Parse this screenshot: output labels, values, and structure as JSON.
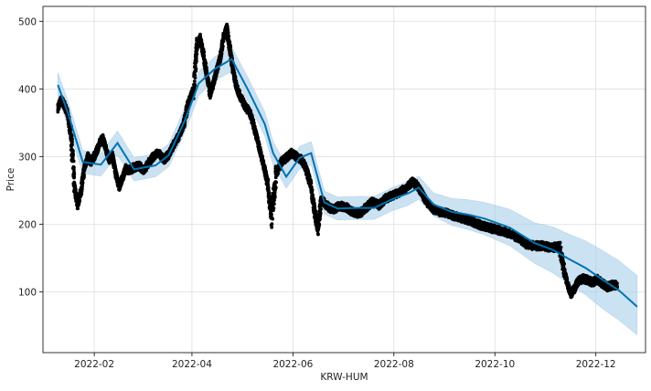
{
  "chart_data": {
    "type": "line",
    "title": "",
    "xlabel": "KRW-HUM",
    "ylabel": "Price",
    "xlim": [
      "2022-01-01",
      "2022-12-31"
    ],
    "ylim": [
      10,
      522
    ],
    "grid": true,
    "x_tick_labels": [
      "2022-02",
      "2022-04",
      "2022-06",
      "2022-08",
      "2022-10",
      "2022-12"
    ],
    "x_tick_dates": [
      "2022-02-01",
      "2022-04-01",
      "2022-06-01",
      "2022-08-01",
      "2022-10-01",
      "2022-12-01"
    ],
    "y_ticks": [
      100,
      200,
      300,
      400,
      500
    ],
    "colors": {
      "forecast": "#0072B2",
      "band": "#a9cfe9",
      "observed": "#000000",
      "grid": "#dddddd"
    },
    "series": [
      {
        "kind": "forecast",
        "x": [
          "2022-01-10",
          "2022-01-16",
          "2022-01-25",
          "2022-02-05",
          "2022-02-15",
          "2022-02-25",
          "2022-03-10",
          "2022-03-18",
          "2022-03-28",
          "2022-04-05",
          "2022-04-15",
          "2022-04-25",
          "2022-05-05",
          "2022-05-15",
          "2022-05-20",
          "2022-05-28",
          "2022-06-05",
          "2022-06-12",
          "2022-06-20",
          "2022-06-28",
          "2022-07-10",
          "2022-07-20",
          "2022-07-31",
          "2022-08-10",
          "2022-08-16",
          "2022-08-25",
          "2022-09-05",
          "2022-09-15",
          "2022-09-25",
          "2022-10-10",
          "2022-10-25",
          "2022-11-05",
          "2022-11-15",
          "2022-11-25",
          "2022-12-05",
          "2022-12-15",
          "2022-12-26"
        ],
        "y": [
          406,
          365,
          292,
          288,
          320,
          281,
          287,
          302,
          355,
          408,
          430,
          444,
          398,
          348,
          305,
          270,
          298,
          305,
          232,
          223,
          224,
          224,
          237,
          246,
          254,
          229,
          218,
          214,
          208,
          195,
          172,
          162,
          148,
          135,
          118,
          102,
          78
        ],
        "lower": [
          388,
          346,
          275,
          271,
          302,
          264,
          270,
          285,
          337,
          390,
          412,
          426,
          380,
          330,
          288,
          253,
          281,
          288,
          215,
          206,
          207,
          207,
          220,
          228,
          237,
          212,
          198,
          192,
          184,
          168,
          142,
          128,
          111,
          95,
          75,
          58,
          36
        ],
        "upper": [
          424,
          383,
          309,
          305,
          338,
          298,
          304,
          319,
          373,
          426,
          448,
          462,
          416,
          366,
          322,
          287,
          315,
          322,
          249,
          240,
          241,
          241,
          254,
          264,
          271,
          246,
          238,
          236,
          232,
          222,
          202,
          196,
          185,
          175,
          161,
          146,
          124
        ]
      },
      {
        "kind": "observed",
        "x": [
          "2022-01-10",
          "2022-01-12",
          "2022-01-14",
          "2022-01-16",
          "2022-01-18",
          "2022-01-20",
          "2022-01-22",
          "2022-01-24",
          "2022-01-26",
          "2022-01-28",
          "2022-01-30",
          "2022-02-02",
          "2022-02-04",
          "2022-02-06",
          "2022-02-08",
          "2022-02-10",
          "2022-02-12",
          "2022-02-14",
          "2022-02-16",
          "2022-02-18",
          "2022-02-20",
          "2022-02-22",
          "2022-02-25",
          "2022-02-28",
          "2022-03-03",
          "2022-03-06",
          "2022-03-09",
          "2022-03-12",
          "2022-03-15",
          "2022-03-18",
          "2022-03-21",
          "2022-03-24",
          "2022-03-27",
          "2022-03-30",
          "2022-04-02",
          "2022-04-04",
          "2022-04-06",
          "2022-04-08",
          "2022-04-10",
          "2022-04-12",
          "2022-04-14",
          "2022-04-16",
          "2022-04-18",
          "2022-04-20",
          "2022-04-22",
          "2022-04-24",
          "2022-04-26",
          "2022-04-28",
          "2022-04-30",
          "2022-05-03",
          "2022-05-06",
          "2022-05-09",
          "2022-05-11",
          "2022-05-13",
          "2022-05-15",
          "2022-05-17",
          "2022-05-19",
          "2022-05-22",
          "2022-05-25",
          "2022-05-28",
          "2022-05-31",
          "2022-06-03",
          "2022-06-06",
          "2022-06-09",
          "2022-06-12",
          "2022-06-14",
          "2022-06-16",
          "2022-06-18",
          "2022-06-20",
          "2022-06-23",
          "2022-06-26",
          "2022-06-29",
          "2022-07-03",
          "2022-07-07",
          "2022-07-11",
          "2022-07-15",
          "2022-07-19",
          "2022-07-23",
          "2022-07-27",
          "2022-07-31",
          "2022-08-04",
          "2022-08-08",
          "2022-08-12",
          "2022-08-15",
          "2022-08-18",
          "2022-08-21",
          "2022-08-25",
          "2022-08-29",
          "2022-09-02",
          "2022-09-06",
          "2022-09-10",
          "2022-09-14",
          "2022-09-18",
          "2022-09-22",
          "2022-09-26",
          "2022-09-30",
          "2022-10-05",
          "2022-10-10",
          "2022-10-15",
          "2022-10-20",
          "2022-10-25",
          "2022-10-30",
          "2022-11-04",
          "2022-11-09",
          "2022-11-12",
          "2022-11-14",
          "2022-11-16",
          "2022-11-18",
          "2022-11-20",
          "2022-11-23",
          "2022-11-26",
          "2022-11-29",
          "2022-12-02",
          "2022-12-05",
          "2022-12-08",
          "2022-12-11"
        ],
        "y": [
          372,
          384,
          376,
          362,
          330,
          255,
          228,
          250,
          282,
          300,
          292,
          305,
          318,
          328,
          312,
          296,
          300,
          275,
          255,
          268,
          282,
          279,
          284,
          286,
          280,
          291,
          301,
          305,
          295,
          303,
          318,
          330,
          348,
          380,
          400,
          462,
          475,
          450,
          420,
          392,
          408,
          428,
          445,
          475,
          490,
          458,
          425,
          402,
          390,
          375,
          365,
          340,
          320,
          300,
          280,
          255,
          210,
          275,
          292,
          298,
          305,
          300,
          296,
          282,
          255,
          220,
          190,
          235,
          232,
          224,
          222,
          227,
          225,
          218,
          215,
          224,
          233,
          228,
          238,
          242,
          247,
          252,
          262,
          258,
          245,
          232,
          222,
          218,
          216,
          212,
          209,
          207,
          203,
          199,
          196,
          193,
          190,
          186,
          180,
          170,
          168,
          168,
          165,
          167,
          130,
          110,
          97,
          104,
          115,
          120,
          117,
          114,
          118,
          112,
          107,
          110
        ]
      }
    ]
  }
}
